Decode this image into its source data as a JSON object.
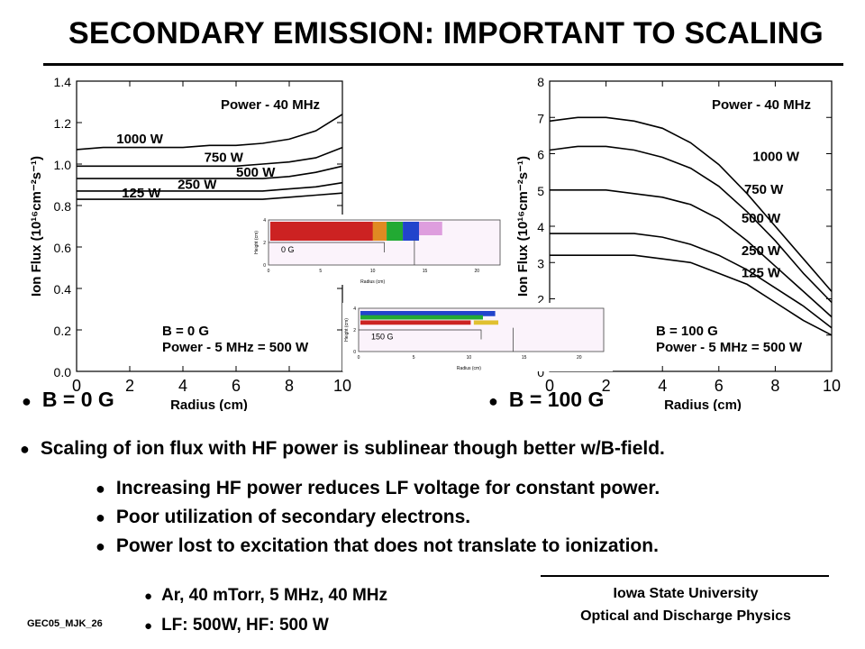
{
  "title": "SECONDARY EMISSION: IMPORTANT TO SCALING",
  "chart_data": [
    {
      "type": "line",
      "xlabel": "Radius (cm)",
      "ylabel": "Ion Flux (10¹⁶cm⁻²s⁻¹)",
      "xlim": [
        0,
        10
      ],
      "ylim": [
        0,
        1.4
      ],
      "xticks": [
        "0",
        "2",
        "4",
        "6",
        "8",
        "10"
      ],
      "yticks": [
        "0.0",
        "0.2",
        "0.4",
        "0.6",
        "0.8",
        "1.0",
        "1.2",
        "1.4"
      ],
      "annotation_top": "Power - 40 MHz",
      "annotation_bottom": [
        "B = 0 G",
        "Power - 5 MHz = 500 W"
      ],
      "caption": "B = 0 G",
      "series": [
        {
          "name": "1000 W",
          "x": [
            0,
            1,
            2,
            3,
            4,
            5,
            6,
            7,
            8,
            9,
            10
          ],
          "y": [
            1.07,
            1.08,
            1.08,
            1.08,
            1.08,
            1.09,
            1.09,
            1.1,
            1.12,
            1.16,
            1.24
          ]
        },
        {
          "name": "750 W",
          "x": [
            0,
            1,
            2,
            3,
            4,
            5,
            6,
            7,
            8,
            9,
            10
          ],
          "y": [
            0.99,
            0.99,
            0.99,
            0.99,
            0.99,
            0.99,
            0.99,
            1.0,
            1.01,
            1.03,
            1.08
          ]
        },
        {
          "name": "500 W",
          "x": [
            0,
            1,
            2,
            3,
            4,
            5,
            6,
            7,
            8,
            9,
            10
          ],
          "y": [
            0.93,
            0.93,
            0.93,
            0.93,
            0.93,
            0.93,
            0.93,
            0.93,
            0.94,
            0.96,
            0.99
          ]
        },
        {
          "name": "250 W",
          "x": [
            0,
            1,
            2,
            3,
            4,
            5,
            6,
            7,
            8,
            9,
            10
          ],
          "y": [
            0.87,
            0.87,
            0.87,
            0.87,
            0.87,
            0.87,
            0.87,
            0.87,
            0.88,
            0.89,
            0.91
          ]
        },
        {
          "name": "125 W",
          "x": [
            0,
            1,
            2,
            3,
            4,
            5,
            6,
            7,
            8,
            9,
            10
          ],
          "y": [
            0.83,
            0.83,
            0.83,
            0.83,
            0.83,
            0.83,
            0.83,
            0.83,
            0.84,
            0.85,
            0.86
          ]
        }
      ]
    },
    {
      "type": "line",
      "xlabel": "Radius (cm)",
      "ylabel": "Ion Flux (10¹⁶cm⁻²s⁻¹)",
      "xlim": [
        0,
        10
      ],
      "ylim": [
        0,
        8
      ],
      "xticks": [
        "0",
        "2",
        "4",
        "6",
        "8",
        "10"
      ],
      "yticks": [
        "0",
        "1",
        "2",
        "3",
        "4",
        "5",
        "6",
        "7",
        "8"
      ],
      "annotation_top": "Power - 40 MHz",
      "annotation_bottom": [
        "B = 100 G",
        "Power - 5 MHz = 500 W"
      ],
      "caption": "B = 100 G",
      "series": [
        {
          "name": "1000 W",
          "x": [
            0,
            1,
            2,
            3,
            4,
            5,
            6,
            7,
            8,
            9,
            10
          ],
          "y": [
            6.9,
            7.0,
            7.0,
            6.9,
            6.7,
            6.3,
            5.7,
            4.9,
            4.0,
            3.1,
            2.2
          ]
        },
        {
          "name": "750 W",
          "x": [
            0,
            1,
            2,
            3,
            4,
            5,
            6,
            7,
            8,
            9,
            10
          ],
          "y": [
            6.1,
            6.2,
            6.2,
            6.1,
            5.9,
            5.6,
            5.1,
            4.4,
            3.6,
            2.7,
            1.9
          ]
        },
        {
          "name": "500 W",
          "x": [
            0,
            1,
            2,
            3,
            4,
            5,
            6,
            7,
            8,
            9,
            10
          ],
          "y": [
            5.0,
            5.0,
            5.0,
            4.9,
            4.8,
            4.6,
            4.2,
            3.6,
            2.9,
            2.2,
            1.5
          ]
        },
        {
          "name": "250 W",
          "x": [
            0,
            1,
            2,
            3,
            4,
            5,
            6,
            7,
            8,
            9,
            10
          ],
          "y": [
            3.8,
            3.8,
            3.8,
            3.8,
            3.7,
            3.5,
            3.2,
            2.8,
            2.3,
            1.8,
            1.2
          ]
        },
        {
          "name": "125 W",
          "x": [
            0,
            1,
            2,
            3,
            4,
            5,
            6,
            7,
            8,
            9,
            10
          ],
          "y": [
            3.2,
            3.2,
            3.2,
            3.2,
            3.1,
            3.0,
            2.7,
            2.4,
            1.9,
            1.4,
            1.0
          ]
        }
      ]
    }
  ],
  "insets": [
    {
      "label": "0 G",
      "xlabel": "Radius (cm)",
      "ylabel": "Height (cm)",
      "xticks": [
        "0",
        "5",
        "10",
        "15",
        "20"
      ],
      "yticks": [
        "0",
        "2",
        "4"
      ]
    },
    {
      "label": "150 G",
      "xlabel": "Radius (cm)",
      "ylabel": "Height (cm)",
      "xticks": [
        "0",
        "5",
        "10",
        "15",
        "20"
      ],
      "yticks": [
        "0",
        "2",
        "4"
      ]
    }
  ],
  "bullets": {
    "main": "Scaling of ion flux with HF power is sublinear though better w/B-field.",
    "sub": [
      "Increasing HF power reduces LF voltage for constant power.",
      "Poor utilization of secondary electrons.",
      "Power lost to excitation that does not translate to ionization."
    ],
    "conditions": [
      "Ar, 40 mTorr,  5 MHz, 40 MHz",
      "LF: 500W, HF: 500 W"
    ]
  },
  "footer": {
    "line1": "Iowa State University",
    "line2": "Optical and Discharge Physics",
    "code": "GEC05_MJK_26"
  },
  "colors": {
    "line": "#000000",
    "inset_hot": "#cc2222",
    "inset_mid": "#22aa33",
    "inset_cool": "#2244cc"
  }
}
